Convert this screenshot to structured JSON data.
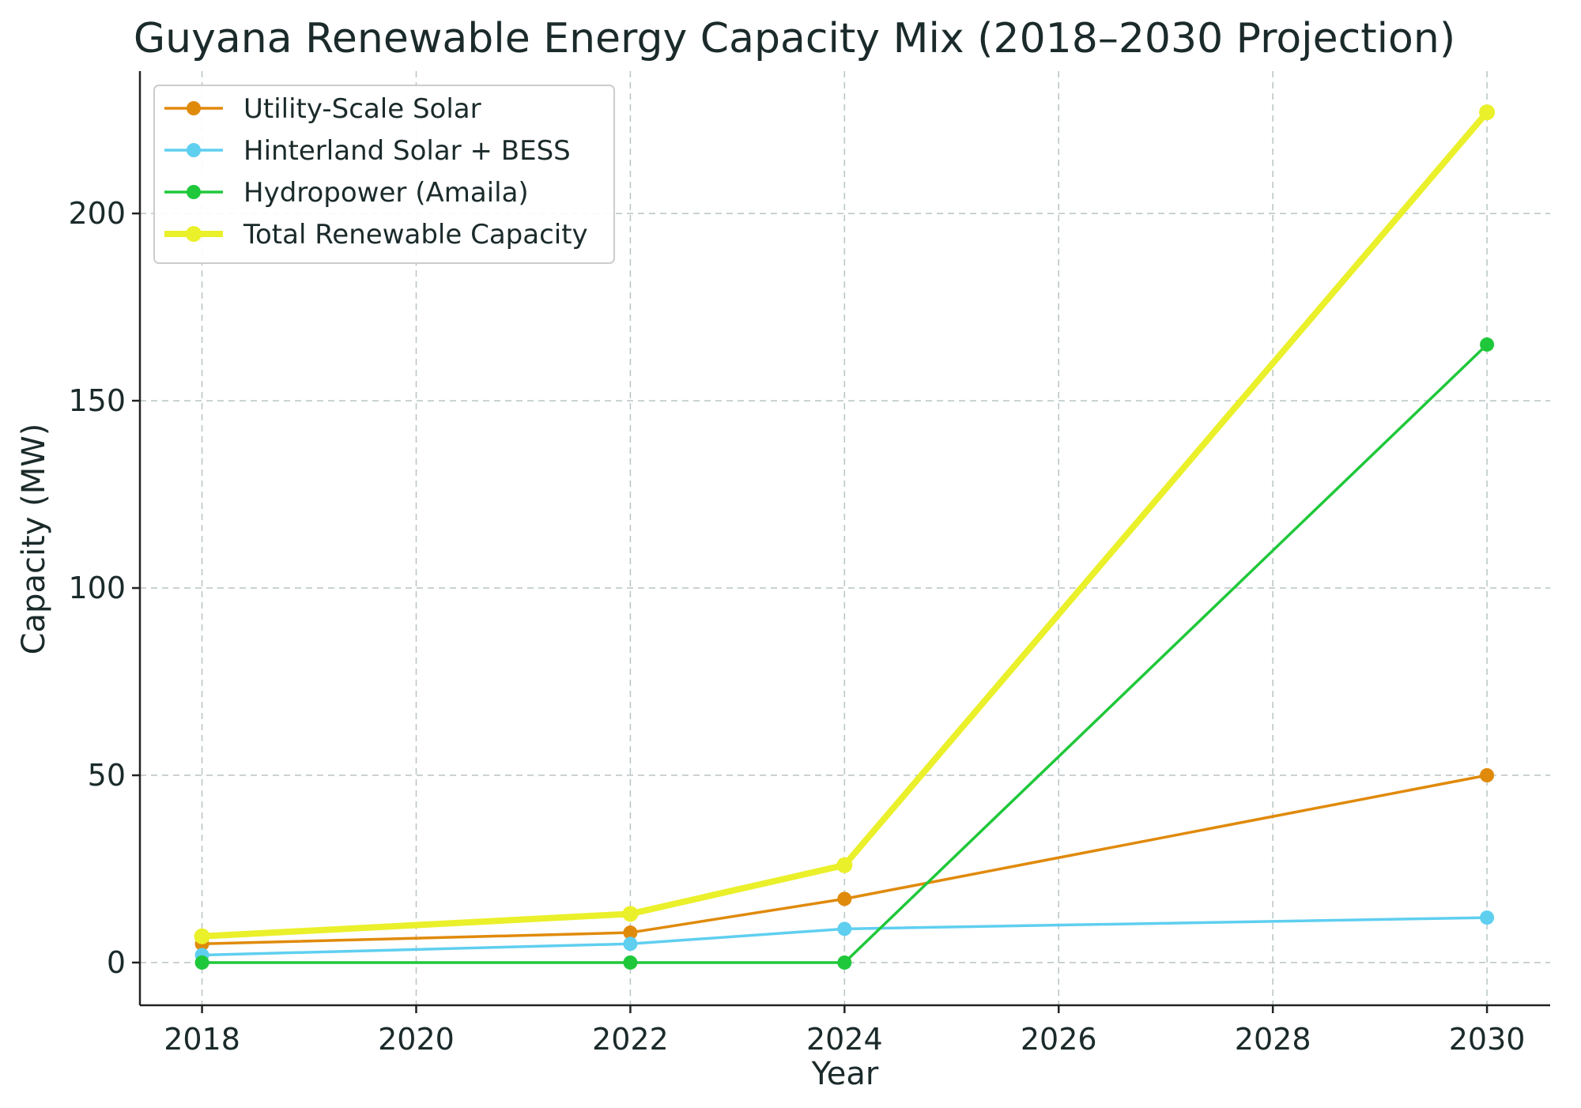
{
  "chart_data": {
    "type": "line",
    "title": "Guyana Renewable Energy Capacity Mix (2018–2030 Projection)",
    "xlabel": "Year",
    "ylabel": "Capacity (MW)",
    "x": [
      2018,
      2022,
      2024,
      2030
    ],
    "xlim": [
      2017.42,
      2030.59
    ],
    "ylim": [
      -11.4,
      238
    ],
    "xticks": [
      2018,
      2020,
      2022,
      2024,
      2026,
      2028,
      2030
    ],
    "yticks": [
      0,
      50,
      100,
      150,
      200
    ],
    "grid": true,
    "legend_position": "top-left",
    "series": [
      {
        "name": "Utility-Scale Solar",
        "values": [
          5,
          8,
          17,
          50
        ],
        "color": "#e08a0b"
      },
      {
        "name": "Hinterland Solar + BESS",
        "values": [
          2,
          5,
          9,
          12
        ],
        "color": "#5fcff0"
      },
      {
        "name": "Hydropower (Amaila)",
        "values": [
          0,
          0,
          0,
          165
        ],
        "color": "#1fc83a"
      },
      {
        "name": "Total Renewable Capacity",
        "values": [
          7,
          13,
          26,
          227
        ],
        "color": "#eaf02a",
        "bold": true
      }
    ]
  }
}
